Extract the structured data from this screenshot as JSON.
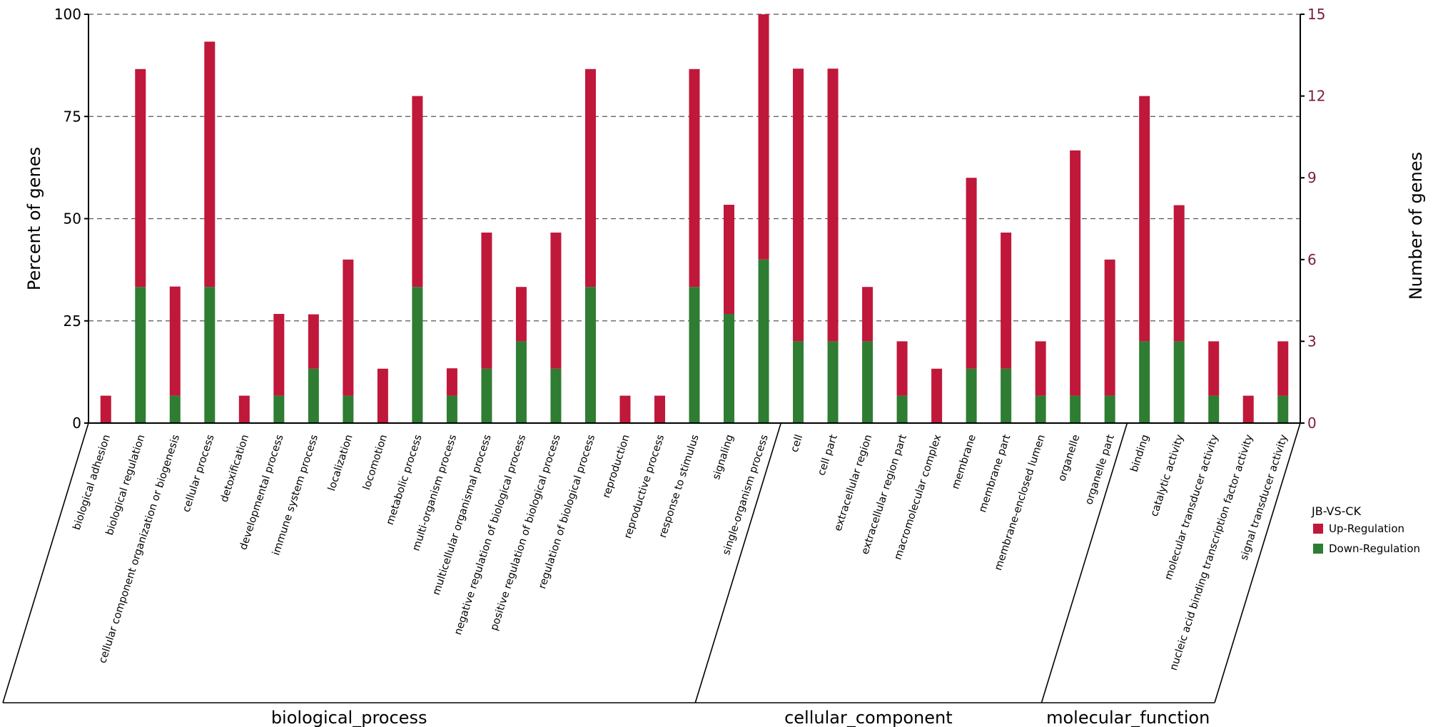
{
  "chart_data": {
    "type": "bar",
    "stacked": true,
    "title": "",
    "ylabel": "Percent of genes",
    "y2label": "Number of genes",
    "ylim": [
      0,
      100
    ],
    "y2lim": [
      0,
      15
    ],
    "yticks": [
      0,
      25,
      50,
      75,
      100
    ],
    "y2ticks": [
      0,
      3,
      6,
      9,
      12,
      15
    ],
    "grid": true,
    "categories": [
      "biological adhesion",
      "biological regulation",
      "cellular component organization or biogenesis",
      "cellular process",
      "detoxification",
      "developmental process",
      "immune system process",
      "localization",
      "locomotion",
      "metabolic process",
      "multi-organism process",
      "multicellular organismal process",
      "negative regulation of biological process",
      "positive regulation of biological process",
      "regulation of biological process",
      "reproduction",
      "reproductive process",
      "response to stimulus",
      "signaling",
      "single-organism process",
      "cell",
      "cell part",
      "extracellular region",
      "extracellular region part",
      "macromolecular complex",
      "membrane",
      "membrane part",
      "membrane-enclosed lumen",
      "organelle",
      "organelle part",
      "binding",
      "catalytic activity",
      "molecular transducer activity",
      "nucleic acid binding transcription factor activity",
      "signal transducer activity"
    ],
    "series": [
      {
        "name": "Up-Regulation",
        "color": "#c0183a",
        "values": [
          6.7,
          53.3,
          26.7,
          60.0,
          6.7,
          20.0,
          13.3,
          33.3,
          13.3,
          46.7,
          6.7,
          33.3,
          13.3,
          33.3,
          53.3,
          6.7,
          6.7,
          53.3,
          26.7,
          60.0,
          66.7,
          66.7,
          13.3,
          13.3,
          13.3,
          46.7,
          33.3,
          13.3,
          60.0,
          33.3,
          60.0,
          33.3,
          13.3,
          6.7,
          13.3
        ]
      },
      {
        "name": "Down-Regulation",
        "color": "#2e7d32",
        "values": [
          0,
          33.3,
          6.7,
          33.3,
          0,
          6.7,
          13.3,
          6.7,
          0,
          33.3,
          6.7,
          13.3,
          20.0,
          13.3,
          33.3,
          0,
          0,
          33.3,
          26.7,
          40.0,
          20.0,
          20.0,
          20.0,
          6.7,
          0,
          13.3,
          13.3,
          6.7,
          6.7,
          6.7,
          20.0,
          20.0,
          6.7,
          0,
          6.7
        ]
      }
    ],
    "groups": [
      {
        "name": "biological_process",
        "count": 20
      },
      {
        "name": "cellular_component",
        "count": 10
      },
      {
        "name": "molecular_function",
        "count": 5
      }
    ],
    "legend": {
      "title": "JB-VS-CK",
      "position": "right",
      "items": [
        "Up-Regulation",
        "Down-Regulation"
      ]
    },
    "colors": {
      "grid": "#555555",
      "right_axis": "#7a1d3a"
    }
  }
}
